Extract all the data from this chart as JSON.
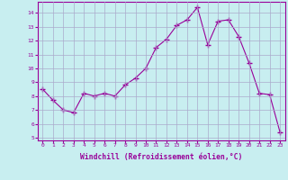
{
  "x": [
    0,
    1,
    2,
    3,
    4,
    5,
    6,
    7,
    8,
    9,
    10,
    11,
    12,
    13,
    14,
    15,
    16,
    17,
    18,
    19,
    20,
    21,
    22,
    23
  ],
  "y": [
    8.5,
    7.7,
    7.0,
    6.8,
    8.2,
    8.0,
    8.2,
    8.0,
    8.8,
    9.3,
    10.0,
    11.5,
    12.1,
    13.1,
    13.5,
    14.4,
    11.7,
    13.4,
    13.5,
    12.3,
    10.4,
    8.2,
    8.1,
    5.4
  ],
  "line_color": "#990099",
  "marker": "+",
  "marker_size": 4,
  "bg_color": "#c8eef0",
  "grid_color": "#aaaacc",
  "xlabel": "Windchill (Refroidissement éolien,°C)",
  "xlabel_color": "#990099",
  "tick_color": "#990099",
  "ylim": [
    4.8,
    14.8
  ],
  "yticks": [
    5,
    6,
    7,
    8,
    9,
    10,
    11,
    12,
    13,
    14
  ],
  "xlim": [
    -0.5,
    23.5
  ],
  "xticks": [
    0,
    1,
    2,
    3,
    4,
    5,
    6,
    7,
    8,
    9,
    10,
    11,
    12,
    13,
    14,
    15,
    16,
    17,
    18,
    19,
    20,
    21,
    22,
    23
  ]
}
